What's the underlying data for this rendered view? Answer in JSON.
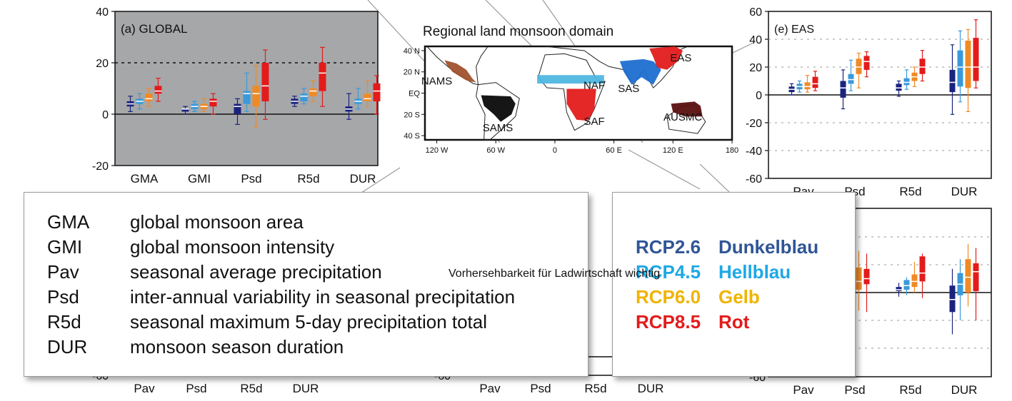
{
  "colors": {
    "rcp26": "#1a237e",
    "rcp45": "#3a9ad9",
    "rcp60": "#f08a24",
    "rcp85": "#e31b1b",
    "panel_bg_global": "#a6a7a9",
    "nams": "#a0522d",
    "sams": "#0a0a0a",
    "naf": "#4fb7e0",
    "saf": "#e31b1b",
    "sas": "#1e6fd0",
    "eas": "#e31b1b",
    "ausmc": "#5a1010"
  },
  "chart_data": [
    {
      "type": "box",
      "title": "(a) GLOBAL",
      "categories": [
        "GMA",
        "GMI",
        "Psd",
        "R5d",
        "DUR"
      ],
      "ylim": [
        -20,
        40
      ],
      "yticks": [
        "-20",
        "0",
        "20",
        "40"
      ],
      "reference_line": 20,
      "series": [
        {
          "values": [
            [
              1,
              3,
              4,
              5,
              7
            ],
            [
              0,
              1,
              2,
              2,
              3
            ],
            [
              -4,
              0,
              3,
              4,
              6
            ],
            [
              3,
              4,
              5,
              6,
              7
            ],
            [
              -2,
              1,
              2,
              3,
              8
            ]
          ]
        },
        {
          "values": [
            [
              2,
              4,
              5,
              6,
              8
            ],
            [
              1,
              2,
              3,
              4,
              5
            ],
            [
              1,
              4,
              8,
              9,
              16
            ],
            [
              4,
              5,
              7,
              8,
              10
            ],
            [
              2,
              4,
              5,
              6,
              10
            ]
          ]
        },
        {
          "values": [
            [
              3,
              5,
              6,
              8,
              10
            ],
            [
              1,
              2,
              3,
              4,
              6
            ],
            [
              -5,
              3,
              8,
              11,
              19
            ],
            [
              5,
              7,
              9,
              10,
              13
            ],
            [
              3,
              5,
              6,
              8,
              13
            ]
          ]
        },
        {
          "values": [
            [
              5,
              8,
              9,
              11,
              14
            ],
            [
              0,
              3,
              5,
              6,
              8
            ],
            [
              -2,
              5,
              11,
              20,
              25
            ],
            [
              3,
              9,
              16,
              20,
              26
            ],
            [
              0,
              5,
              9,
              12,
              15
            ]
          ]
        }
      ]
    },
    {
      "type": "map",
      "title": "Regional land monsoon domain",
      "lat_ticks": [
        "40 N",
        "20 N",
        "EQ",
        "20 S",
        "40 S"
      ],
      "lon_ticks": [
        "120 W",
        "60 W",
        "0",
        "60 E",
        "120 E",
        "180"
      ],
      "regions": [
        "NAMS",
        "SAMS",
        "NAF",
        "SAF",
        "SAS",
        "EAS",
        "AUSMC"
      ]
    },
    {
      "type": "box",
      "title": "(e) EAS",
      "categories": [
        "Pav",
        "Psd",
        "R5d",
        "DUR"
      ],
      "ylim": [
        -60,
        60
      ],
      "yticks": [
        "-60",
        "-40",
        "-20",
        "0",
        "20",
        "40",
        "60"
      ],
      "series": [
        {
          "values": [
            [
              0,
              2,
              4,
              6,
              8
            ],
            [
              -10,
              -2,
              5,
              10,
              18
            ],
            [
              -1,
              3,
              5,
              8,
              10
            ],
            [
              -14,
              2,
              9,
              18,
              36
            ]
          ]
        },
        {
          "values": [
            [
              2,
              4,
              6,
              8,
              10
            ],
            [
              3,
              8,
              11,
              15,
              25
            ],
            [
              4,
              7,
              9,
              12,
              18
            ],
            [
              -5,
              6,
              20,
              32,
              46
            ]
          ]
        },
        {
          "values": [
            [
              2,
              4,
              6,
              9,
              14
            ],
            [
              5,
              15,
              20,
              26,
              30
            ],
            [
              6,
              10,
              13,
              16,
              20
            ],
            [
              -12,
              5,
              20,
              39,
              47
            ]
          ]
        },
        {
          "values": [
            [
              3,
              5,
              8,
              13,
              17
            ],
            [
              13,
              18,
              24,
              28,
              31
            ],
            [
              10,
              15,
              20,
              26,
              32
            ],
            [
              5,
              10,
              20,
              41,
              54
            ]
          ]
        }
      ]
    },
    {
      "type": "box",
      "categories": [
        "Pav",
        "Psd",
        "R5d",
        "DUR"
      ],
      "yticks": [
        "-60"
      ],
      "partially_hidden": true
    },
    {
      "type": "box",
      "categories": [
        "Pav",
        "Psd",
        "R5d",
        "DUR"
      ],
      "yticks": [
        "-60"
      ],
      "partially_hidden": true
    },
    {
      "type": "box",
      "categories": [
        "Pav",
        "Psd",
        "R5d",
        "DUR"
      ],
      "yticks": [
        "-60"
      ],
      "partially_hidden": true,
      "series": [
        {
          "values": [
            [
              -10,
              -4,
              -2,
              0,
              2
            ],
            [
              null,
              null,
              null,
              null,
              null
            ],
            [
              -3,
              1,
              2,
              4,
              7
            ],
            [
              -30,
              -14,
              -5,
              5,
              17
            ]
          ]
        },
        {
          "values": [
            [
              -8,
              -2,
              1,
              4,
              8
            ],
            [
              null,
              null,
              null,
              null,
              null
            ],
            [
              -2,
              2,
              5,
              9,
              11
            ],
            [
              -20,
              -2,
              6,
              14,
              24
            ]
          ]
        },
        {
          "values": [
            [
              -6,
              -1,
              3,
              6,
              12
            ],
            [
              -13,
              2,
              8,
              18,
              30
            ],
            [
              0,
              4,
              8,
              13,
              22
            ],
            [
              -10,
              0,
              11,
              24,
              35
            ]
          ]
        },
        {
          "values": [
            [
              -4,
              2,
              5,
              9,
              14
            ],
            [
              -14,
              6,
              10,
              17,
              28
            ],
            [
              -4,
              8,
              14,
              26,
              28
            ],
            [
              -20,
              1,
              15,
              21,
              32
            ]
          ]
        }
      ]
    }
  ],
  "abbreviations": [
    {
      "key": "GMA",
      "text": "global monsoon area"
    },
    {
      "key": "GMI",
      "text": "global monsoon intensity"
    },
    {
      "key": "Pav",
      "text": "seasonal average precipitation"
    },
    {
      "key": "Psd",
      "text": "inter-annual variability in seasonal precipitation"
    },
    {
      "key": "R5d",
      "text": "seasonal maximum 5-day precipitation total"
    },
    {
      "key": "DUR",
      "text": "monsoon season duration"
    }
  ],
  "rcp_legend": [
    {
      "key": "RCP2.6",
      "text": "Dunkelblau",
      "color": "#2f5597"
    },
    {
      "key": "RCP4.5",
      "text": "Hellblau",
      "color": "#1ea8e6"
    },
    {
      "key": "RCP6.0",
      "text": "Gelb",
      "color": "#f0b400"
    },
    {
      "key": "RCP8.5",
      "text": "Rot",
      "color": "#e31b1b"
    }
  ],
  "note": "Vorhersehbarkeit für Ladwirtschaft wichtig"
}
